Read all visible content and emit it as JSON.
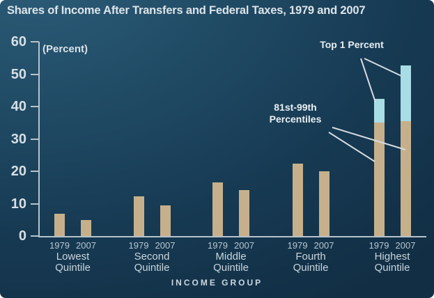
{
  "title": "Shares of Income After Transfers and Federal Taxes, 1979 and 2007",
  "chart_data": {
    "type": "bar",
    "title": "Shares of Income After Transfers and Federal Taxes, 1979 and 2007",
    "unit_label": "(Percent)",
    "x_axis_label": "INCOME GROUP",
    "ylim": [
      0,
      60
    ],
    "y_ticks": [
      0,
      10,
      20,
      30,
      40,
      50,
      60
    ],
    "grid": "off",
    "year_series": [
      "1979",
      "2007"
    ],
    "colors": {
      "quintile_bar": "#c6b08c",
      "top1_bar": "#a9dde5",
      "background_top": "#2c5c78",
      "background_bottom": "#112e44",
      "axis": "#b6c3cc"
    },
    "groups": [
      {
        "label": [
          "Lowest",
          "Quintile"
        ],
        "bars": [
          {
            "year": "1979",
            "segments": [
              {
                "series": "Quintile share",
                "value": 6.8
              }
            ]
          },
          {
            "year": "2007",
            "segments": [
              {
                "series": "Quintile share",
                "value": 4.9
              }
            ]
          }
        ]
      },
      {
        "label": [
          "Second",
          "Quintile"
        ],
        "bars": [
          {
            "year": "1979",
            "segments": [
              {
                "series": "Quintile share",
                "value": 12.3
              }
            ]
          },
          {
            "year": "2007",
            "segments": [
              {
                "series": "Quintile share",
                "value": 9.4
              }
            ]
          }
        ]
      },
      {
        "label": [
          "Middle",
          "Quintile"
        ],
        "bars": [
          {
            "year": "1979",
            "segments": [
              {
                "series": "Quintile share",
                "value": 16.5
              }
            ]
          },
          {
            "year": "2007",
            "segments": [
              {
                "series": "Quintile share",
                "value": 14.1
              }
            ]
          }
        ]
      },
      {
        "label": [
          "Fourth",
          "Quintile"
        ],
        "bars": [
          {
            "year": "1979",
            "segments": [
              {
                "series": "Quintile share",
                "value": 22.3
              }
            ]
          },
          {
            "year": "2007",
            "segments": [
              {
                "series": "Quintile share",
                "value": 20.0
              }
            ]
          }
        ]
      },
      {
        "label": [
          "Highest",
          "Quintile"
        ],
        "bars": [
          {
            "year": "1979",
            "segments": [
              {
                "series": "81st-99th Percentiles",
                "value": 35.0
              },
              {
                "series": "Top 1 Percent",
                "value": 7.4
              }
            ]
          },
          {
            "year": "2007",
            "segments": [
              {
                "series": "81st-99th Percentiles",
                "value": 35.4
              },
              {
                "series": "Top 1 Percent",
                "value": 17.1
              }
            ]
          }
        ]
      }
    ],
    "annotations": [
      {
        "id": "top1",
        "lines": [
          "Top 1 Percent"
        ]
      },
      {
        "id": "p8199",
        "lines": [
          "81st-99th",
          "Percentiles"
        ]
      }
    ]
  }
}
